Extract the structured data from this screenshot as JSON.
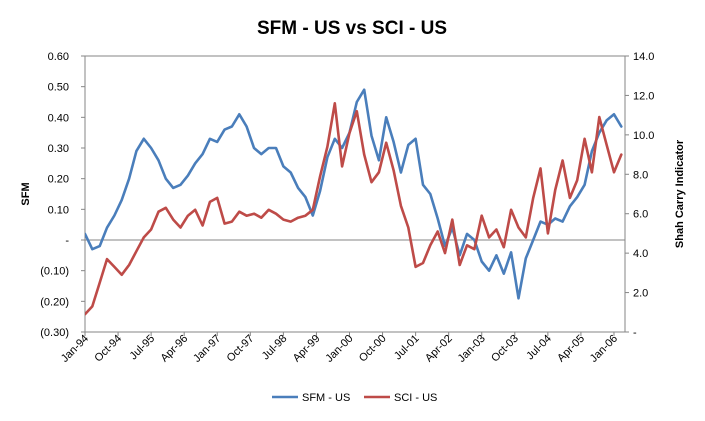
{
  "chart_data": {
    "type": "line",
    "title": "SFM - US vs SCI - US",
    "ylabel_left": "SFM",
    "ylabel_right": "Shah Carry Indicator",
    "ylim_left": [
      -0.3,
      0.6
    ],
    "ylim_right": [
      0,
      14
    ],
    "left_ticks": [
      {
        "value": 0.6,
        "label": "0.60"
      },
      {
        "value": 0.5,
        "label": "0.50"
      },
      {
        "value": 0.4,
        "label": "0.40"
      },
      {
        "value": 0.3,
        "label": "0.30"
      },
      {
        "value": 0.2,
        "label": "0.20"
      },
      {
        "value": 0.1,
        "label": "0.10"
      },
      {
        "value": 0.0,
        "label": "-"
      },
      {
        "value": -0.1,
        "label": "(0.10)"
      },
      {
        "value": -0.2,
        "label": "(0.20)"
      },
      {
        "value": -0.3,
        "label": "(0.30)"
      }
    ],
    "right_ticks": [
      {
        "value": 14,
        "label": "14.0"
      },
      {
        "value": 12,
        "label": "12.0"
      },
      {
        "value": 10,
        "label": "10.0"
      },
      {
        "value": 8,
        "label": "8.0"
      },
      {
        "value": 6,
        "label": "6.0"
      },
      {
        "value": 4,
        "label": "4.0"
      },
      {
        "value": 2,
        "label": "2.0"
      },
      {
        "value": 0,
        "label": "-"
      }
    ],
    "x_ticks": [
      {
        "index": 0,
        "label": "Jan-94"
      },
      {
        "index": 9,
        "label": "Oct-94"
      },
      {
        "index": 18,
        "label": "Jul-95"
      },
      {
        "index": 27,
        "label": "Apr-96"
      },
      {
        "index": 36,
        "label": "Jan-97"
      },
      {
        "index": 45,
        "label": "Oct-97"
      },
      {
        "index": 54,
        "label": "Jul-98"
      },
      {
        "index": 63,
        "label": "Apr-99"
      },
      {
        "index": 72,
        "label": "Jan-00"
      },
      {
        "index": 81,
        "label": "Oct-00"
      },
      {
        "index": 90,
        "label": "Jul-01"
      },
      {
        "index": 99,
        "label": "Apr-02"
      },
      {
        "index": 108,
        "label": "Jan-03"
      },
      {
        "index": 117,
        "label": "Oct-03"
      },
      {
        "index": 126,
        "label": "Jul-04"
      },
      {
        "index": 135,
        "label": "Apr-05"
      },
      {
        "index": 144,
        "label": "Jan-06"
      }
    ],
    "x_count": 148,
    "legend_position": "bottom",
    "grid": false,
    "series": [
      {
        "name": "SFM - US",
        "axis": "left",
        "color": "#4a7ebb",
        "x": [
          0,
          2,
          4,
          6,
          8,
          10,
          12,
          14,
          16,
          18,
          20,
          22,
          24,
          26,
          28,
          30,
          32,
          34,
          36,
          38,
          40,
          42,
          44,
          46,
          48,
          50,
          52,
          54,
          56,
          58,
          60,
          62,
          64,
          66,
          68,
          70,
          72,
          74,
          76,
          78,
          80,
          82,
          84,
          86,
          88,
          90,
          92,
          94,
          96,
          98,
          100,
          102,
          104,
          106,
          108,
          110,
          112,
          114,
          116,
          118,
          120,
          122,
          124,
          126,
          128,
          130,
          132,
          134,
          136,
          138,
          140,
          142,
          144,
          146
        ],
        "values": [
          0.02,
          -0.03,
          -0.02,
          0.04,
          0.08,
          0.13,
          0.2,
          0.29,
          0.33,
          0.3,
          0.26,
          0.2,
          0.17,
          0.18,
          0.21,
          0.25,
          0.28,
          0.33,
          0.32,
          0.36,
          0.37,
          0.41,
          0.37,
          0.3,
          0.28,
          0.3,
          0.3,
          0.24,
          0.22,
          0.17,
          0.14,
          0.08,
          0.16,
          0.27,
          0.33,
          0.3,
          0.35,
          0.45,
          0.49,
          0.34,
          0.26,
          0.4,
          0.32,
          0.22,
          0.31,
          0.33,
          0.18,
          0.15,
          0.07,
          -0.02,
          0.04,
          -0.05,
          0.02,
          0.0,
          -0.07,
          -0.1,
          -0.05,
          -0.11,
          -0.04,
          -0.19,
          -0.06,
          0.0,
          0.06,
          0.05,
          0.07,
          0.06,
          0.11,
          0.14,
          0.18,
          0.29,
          0.35,
          0.39,
          0.41,
          0.37
        ]
      },
      {
        "name": "SCI - US",
        "axis": "right",
        "color": "#be4b48",
        "x": [
          0,
          2,
          4,
          6,
          8,
          10,
          12,
          14,
          16,
          18,
          20,
          22,
          24,
          26,
          28,
          30,
          32,
          34,
          36,
          38,
          40,
          42,
          44,
          46,
          48,
          50,
          52,
          54,
          56,
          58,
          60,
          62,
          64,
          66,
          68,
          70,
          72,
          74,
          76,
          78,
          80,
          82,
          84,
          86,
          88,
          90,
          92,
          94,
          96,
          98,
          100,
          102,
          104,
          106,
          108,
          110,
          112,
          114,
          116,
          118,
          120,
          122,
          124,
          126,
          128,
          130,
          132,
          134,
          136,
          138,
          140,
          142,
          144,
          146
        ],
        "values": [
          0.9,
          1.3,
          2.5,
          3.7,
          3.3,
          2.9,
          3.4,
          4.1,
          4.8,
          5.2,
          6.1,
          6.3,
          5.7,
          5.3,
          5.9,
          6.2,
          5.4,
          6.6,
          6.8,
          5.5,
          5.6,
          6.1,
          5.9,
          6.0,
          5.8,
          6.2,
          6.0,
          5.7,
          5.6,
          5.8,
          5.9,
          6.2,
          7.9,
          9.4,
          11.6,
          8.4,
          10.1,
          11.2,
          9.0,
          7.6,
          8.1,
          9.6,
          8.2,
          6.4,
          5.3,
          3.3,
          3.5,
          4.4,
          5.1,
          4.0,
          5.7,
          3.4,
          4.4,
          4.2,
          5.9,
          4.8,
          5.2,
          4.3,
          6.2,
          5.3,
          4.8,
          6.8,
          8.3,
          5.0,
          7.2,
          8.7,
          6.8,
          7.7,
          9.8,
          8.1,
          10.9,
          9.5,
          8.1,
          9.0
        ]
      }
    ]
  }
}
